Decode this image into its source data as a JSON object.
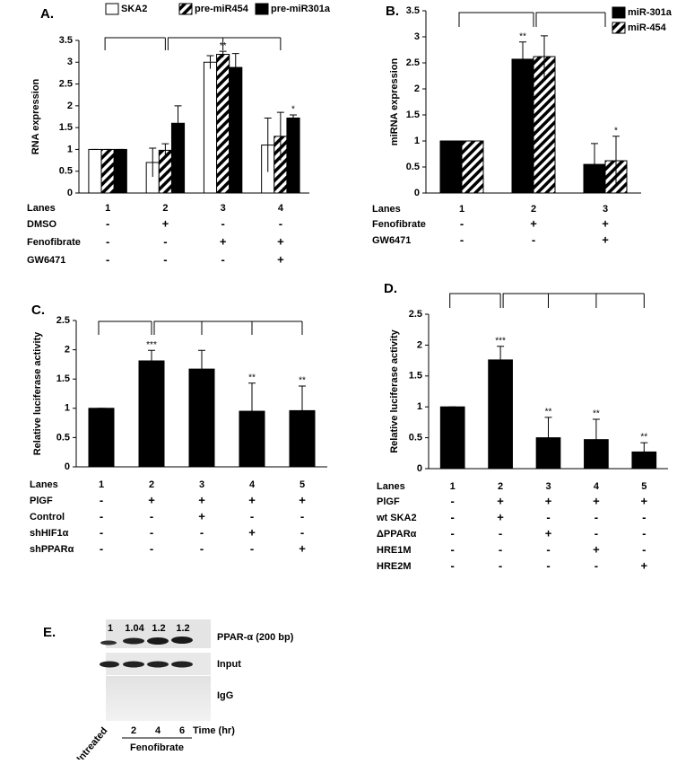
{
  "chart_data": [
    {
      "type": "bar",
      "panel_label": "A.",
      "y_label": "RNA expression",
      "category_label": "Lanes",
      "categories": [
        "1",
        "2",
        "3",
        "4"
      ],
      "series": [
        {
          "name": "SKA2",
          "color": "#ffffff",
          "pattern": "solid",
          "values": [
            1,
            0.7,
            3.0,
            1.1
          ],
          "errors": [
            0,
            0.33,
            0.15,
            0.62
          ],
          "significance": [
            null,
            null,
            null,
            null
          ]
        },
        {
          "name": "pre-miR454",
          "color": "#000000",
          "pattern": "hatch",
          "values": [
            1,
            0.98,
            3.18,
            1.3
          ],
          "errors": [
            0,
            0.15,
            0.07,
            0.55
          ],
          "significance": [
            null,
            null,
            "**",
            null
          ]
        },
        {
          "name": "pre-miR301a",
          "color": "#000000",
          "pattern": "solid",
          "values": [
            1,
            1.6,
            2.88,
            1.72
          ],
          "errors": [
            0,
            0.4,
            0.32,
            0.07
          ],
          "significance": [
            null,
            null,
            null,
            "*"
          ]
        }
      ],
      "conditions": [
        {
          "name": "DMSO",
          "values": [
            "-",
            "+",
            "-",
            "-"
          ]
        },
        {
          "name": "Fenofibrate",
          "values": [
            "-",
            "-",
            "+",
            "+"
          ]
        },
        {
          "name": "GW6471",
          "values": [
            "-",
            "-",
            "-",
            "+"
          ]
        }
      ],
      "ylim": [
        0,
        3.5
      ],
      "yticks": [
        0,
        0.5,
        1,
        1.5,
        2,
        2.5,
        3,
        3.5
      ]
    },
    {
      "type": "bar",
      "panel_label": "B.",
      "y_label": "miRNA expression",
      "category_label": "Lanes",
      "categories": [
        "1",
        "2",
        "3"
      ],
      "series": [
        {
          "name": "miR-301a",
          "color": "#000000",
          "pattern": "solid",
          "values": [
            1,
            2.57,
            0.55
          ],
          "errors": [
            0,
            0.33,
            0.4
          ],
          "significance": [
            null,
            "**",
            null
          ]
        },
        {
          "name": "miR-454",
          "color": "#000000",
          "pattern": "hatch",
          "values": [
            1,
            2.62,
            0.62
          ],
          "errors": [
            0,
            0.4,
            0.47
          ],
          "significance": [
            null,
            null,
            "*"
          ]
        }
      ],
      "conditions": [
        {
          "name": "Fenofibrate",
          "values": [
            "-",
            "+",
            "+"
          ]
        },
        {
          "name": "GW6471",
          "values": [
            "-",
            "-",
            "+"
          ]
        }
      ],
      "ylim": [
        0,
        3.5
      ],
      "yticks": [
        0,
        0.5,
        1,
        1.5,
        2,
        2.5,
        3,
        3.5
      ]
    },
    {
      "type": "bar",
      "panel_label": "C.",
      "y_label": "Relative luciferase activity",
      "category_label": "Lanes",
      "categories": [
        "1",
        "2",
        "3",
        "4",
        "5"
      ],
      "series": [
        {
          "color": "#000000",
          "pattern": "solid",
          "values": [
            1,
            1.81,
            1.67,
            0.95,
            0.96
          ],
          "errors": [
            0,
            0.18,
            0.32,
            0.48,
            0.42
          ],
          "significance": [
            null,
            "***",
            null,
            "**",
            "**"
          ]
        }
      ],
      "conditions": [
        {
          "name": "PlGF",
          "values": [
            "-",
            "+",
            "+",
            "+",
            "+"
          ]
        },
        {
          "name": "Control",
          "values": [
            "-",
            "-",
            "+",
            "-",
            "-"
          ]
        },
        {
          "name": "shHIF1α",
          "values": [
            "-",
            "-",
            "-",
            "+",
            "-"
          ]
        },
        {
          "name": "shPPARα",
          "values": [
            "-",
            "-",
            "-",
            "-",
            "+"
          ]
        }
      ],
      "ylim": [
        0,
        2.5
      ],
      "yticks": [
        0,
        0.5,
        1,
        1.5,
        2,
        2.5
      ]
    },
    {
      "type": "bar",
      "panel_label": "D.",
      "y_label": "Relative luciferase activity",
      "category_label": "Lanes",
      "categories": [
        "1",
        "2",
        "3",
        "4",
        "5"
      ],
      "series": [
        {
          "color": "#000000",
          "pattern": "solid",
          "values": [
            1,
            1.76,
            0.5,
            0.47,
            0.27
          ],
          "errors": [
            0,
            0.22,
            0.33,
            0.33,
            0.15
          ],
          "significance": [
            null,
            "***",
            "**",
            "**",
            "**"
          ]
        }
      ],
      "conditions": [
        {
          "name": "PlGF",
          "values": [
            "-",
            "+",
            "+",
            "+",
            "+"
          ]
        },
        {
          "name": "wt SKA2",
          "values": [
            "-",
            "+",
            "-",
            "-",
            "-"
          ]
        },
        {
          "name": "ΔPPARα",
          "values": [
            "-",
            "-",
            "+",
            "-",
            "-"
          ]
        },
        {
          "name": "HRE1M",
          "values": [
            "-",
            "-",
            "-",
            "+",
            "-"
          ]
        },
        {
          "name": "HRE2M",
          "values": [
            "-",
            "-",
            "-",
            "-",
            "+"
          ]
        }
      ],
      "ylim": [
        0,
        2.5
      ],
      "yticks": [
        0,
        0.5,
        1,
        1.5,
        2,
        2.5
      ]
    }
  ],
  "gel": {
    "panel_label": "E.",
    "band_values": [
      1,
      1.04,
      1.2,
      1.2
    ],
    "rows": [
      "PPAR-α (200 bp)",
      "Input",
      "IgG"
    ],
    "times": [
      2,
      4,
      6
    ],
    "time_label": "Time (hr)",
    "untreated": "Untreated",
    "treatment": "Fenofibrate"
  }
}
